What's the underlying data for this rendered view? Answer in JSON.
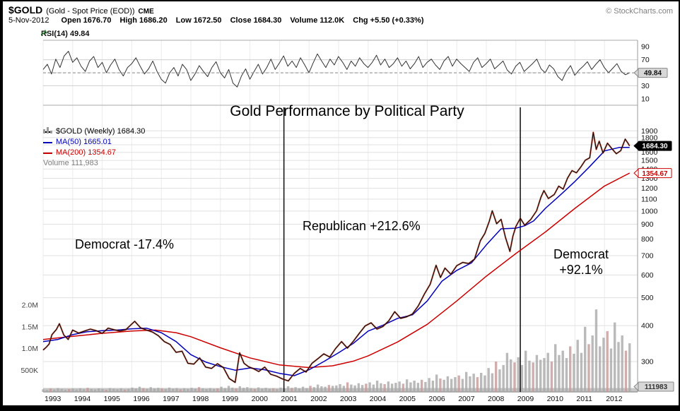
{
  "header": {
    "symbol": "$GOLD",
    "name": "(Gold - Spot Price (EOD))",
    "exchange": "CME",
    "copyright": "© StockCharts.com",
    "date": "5-Nov-2012",
    "quote": [
      {
        "label": "Open",
        "value": "1676.70"
      },
      {
        "label": "High",
        "value": "1686.20"
      },
      {
        "label": "Low",
        "value": "1672.50"
      },
      {
        "label": "Close",
        "value": "1684.30"
      },
      {
        "label": "Volume",
        "value": "112.0K"
      },
      {
        "label": "Chg",
        "value": "+5.50 (+0.33%)"
      }
    ]
  },
  "rsi_panel": {
    "label": "RSI(14) 49.84",
    "value_box": "49.84"
  },
  "legend": {
    "gold": "$GOLD (Weekly) 1684.30",
    "ma50": "MA(50) 1665.01",
    "ma200": "MA(200) 1354.67",
    "volume": "Volume 111,983"
  },
  "axis_tags": {
    "close": "1684.30",
    "ma200": "1354.67",
    "volume": "111983"
  },
  "colors": {
    "gold_line": "#000000",
    "gold_shadow": "#cc2200",
    "ma50": "#0000bb",
    "ma200": "#cc0000",
    "volume_bar": "#a9a9a9",
    "rsi_line": "#333333",
    "event_line": "#1a1a1a"
  },
  "chart_data": {
    "type": "line",
    "title": "Gold Performance by Political Party",
    "price_scale": "log",
    "ylim": [
      255,
      1950
    ],
    "annotations": {
      "left": "Democrat -17.4%",
      "middle": "Republican +212.6%",
      "right_line1": "Democrat",
      "right_line2": "+92.1%"
    },
    "x_ticks": [
      1993,
      1994,
      1995,
      1996,
      1997,
      1998,
      1999,
      2000,
      2001,
      2002,
      2003,
      2004,
      2005,
      2006,
      2007,
      2008,
      2009,
      2010,
      2011,
      2012
    ],
    "price_axis_ticks": [
      1900,
      1800,
      1700,
      1600,
      1500,
      1400,
      1300,
      1200,
      1100,
      1000,
      900,
      800,
      700,
      600,
      500,
      400,
      300
    ],
    "rsi_ticks": [
      90,
      70,
      30,
      10
    ],
    "volume_axis_ticks": [
      {
        "label": "2.0M",
        "value_k": 2000
      },
      {
        "label": "1.5M",
        "value_k": 1500
      },
      {
        "label": "1.0M",
        "value_k": 1000
      },
      {
        "label": "500K",
        "value_k": 500
      }
    ],
    "event_lines": [
      2001.15,
      2009.15
    ],
    "series": [
      {
        "name": "$GOLD (Weekly)",
        "color": "#000000",
        "last": 1684.3,
        "points": [
          [
            1993.0,
            329
          ],
          [
            1993.1,
            336
          ],
          [
            1993.2,
            345
          ],
          [
            1993.3,
            372
          ],
          [
            1993.45,
            388
          ],
          [
            1993.55,
            406
          ],
          [
            1993.7,
            371
          ],
          [
            1993.85,
            358
          ],
          [
            1994.0,
            386
          ],
          [
            1994.2,
            377
          ],
          [
            1994.4,
            383
          ],
          [
            1994.6,
            389
          ],
          [
            1994.8,
            384
          ],
          [
            1995.0,
            376
          ],
          [
            1995.2,
            392
          ],
          [
            1995.4,
            387
          ],
          [
            1995.6,
            383
          ],
          [
            1995.8,
            387
          ],
          [
            1996.0,
            405
          ],
          [
            1996.1,
            414
          ],
          [
            1996.3,
            393
          ],
          [
            1996.5,
            386
          ],
          [
            1996.7,
            380
          ],
          [
            1996.9,
            369
          ],
          [
            1997.1,
            352
          ],
          [
            1997.3,
            344
          ],
          [
            1997.5,
            323
          ],
          [
            1997.7,
            326
          ],
          [
            1997.9,
            296
          ],
          [
            1998.1,
            294
          ],
          [
            1998.3,
            309
          ],
          [
            1998.5,
            287
          ],
          [
            1998.7,
            284
          ],
          [
            1998.9,
            295
          ],
          [
            1999.1,
            286
          ],
          [
            1999.3,
            262
          ],
          [
            1999.5,
            254
          ],
          [
            1999.65,
            322
          ],
          [
            1999.8,
            296
          ],
          [
            1999.95,
            288
          ],
          [
            2000.1,
            284
          ],
          [
            2000.3,
            277
          ],
          [
            2000.5,
            287
          ],
          [
            2000.7,
            271
          ],
          [
            2000.9,
            267
          ],
          [
            2001.1,
            261
          ],
          [
            2001.3,
            257
          ],
          [
            2001.5,
            273
          ],
          [
            2001.7,
            284
          ],
          [
            2001.9,
            276
          ],
          [
            2002.1,
            296
          ],
          [
            2002.3,
            307
          ],
          [
            2002.5,
            319
          ],
          [
            2002.7,
            311
          ],
          [
            2002.9,
            333
          ],
          [
            2003.1,
            352
          ],
          [
            2003.3,
            334
          ],
          [
            2003.5,
            353
          ],
          [
            2003.7,
            376
          ],
          [
            2003.9,
            399
          ],
          [
            2004.1,
            409
          ],
          [
            2004.3,
            389
          ],
          [
            2004.5,
            397
          ],
          [
            2004.7,
            416
          ],
          [
            2004.9,
            447
          ],
          [
            2005.1,
            424
          ],
          [
            2005.3,
            429
          ],
          [
            2005.5,
            439
          ],
          [
            2005.7,
            469
          ],
          [
            2005.9,
            514
          ],
          [
            2006.1,
            557
          ],
          [
            2006.3,
            648
          ],
          [
            2006.45,
            588
          ],
          [
            2006.6,
            634
          ],
          [
            2006.8,
            603
          ],
          [
            2007.0,
            646
          ],
          [
            2007.2,
            663
          ],
          [
            2007.4,
            657
          ],
          [
            2007.6,
            681
          ],
          [
            2007.8,
            789
          ],
          [
            2007.95,
            836
          ],
          [
            2008.1,
            922
          ],
          [
            2008.2,
            1002
          ],
          [
            2008.35,
            904
          ],
          [
            2008.5,
            936
          ],
          [
            2008.65,
            808
          ],
          [
            2008.8,
            724
          ],
          [
            2008.9,
            818
          ],
          [
            2009.0,
            884
          ],
          [
            2009.15,
            944
          ],
          [
            2009.3,
            893
          ],
          [
            2009.5,
            934
          ],
          [
            2009.7,
            1002
          ],
          [
            2009.85,
            1118
          ],
          [
            2009.95,
            1178
          ],
          [
            2010.1,
            1106
          ],
          [
            2010.3,
            1142
          ],
          [
            2010.45,
            1221
          ],
          [
            2010.6,
            1192
          ],
          [
            2010.75,
            1302
          ],
          [
            2010.9,
            1382
          ],
          [
            2011.05,
            1358
          ],
          [
            2011.2,
            1424
          ],
          [
            2011.35,
            1502
          ],
          [
            2011.5,
            1532
          ],
          [
            2011.62,
            1878
          ],
          [
            2011.72,
            1638
          ],
          [
            2011.82,
            1748
          ],
          [
            2011.95,
            1592
          ],
          [
            2012.1,
            1722
          ],
          [
            2012.25,
            1648
          ],
          [
            2012.4,
            1582
          ],
          [
            2012.55,
            1622
          ],
          [
            2012.7,
            1778
          ],
          [
            2012.8,
            1718
          ],
          [
            2012.85,
            1684.3
          ]
        ]
      },
      {
        "name": "MA(50)",
        "color": "#0000bb",
        "last": 1665.01,
        "points": [
          [
            1993.0,
            352
          ],
          [
            1993.5,
            358
          ],
          [
            1994.0,
            372
          ],
          [
            1994.5,
            381
          ],
          [
            1995.0,
            384
          ],
          [
            1995.5,
            386
          ],
          [
            1996.0,
            390
          ],
          [
            1996.5,
            392
          ],
          [
            1997.0,
            378
          ],
          [
            1997.5,
            352
          ],
          [
            1998.0,
            317
          ],
          [
            1998.5,
            299
          ],
          [
            1999.0,
            288
          ],
          [
            1999.5,
            280
          ],
          [
            2000.0,
            285
          ],
          [
            2000.5,
            281
          ],
          [
            2001.0,
            273
          ],
          [
            2001.5,
            268
          ],
          [
            2002.0,
            281
          ],
          [
            2002.5,
            300
          ],
          [
            2003.0,
            322
          ],
          [
            2003.5,
            347
          ],
          [
            2004.0,
            383
          ],
          [
            2004.5,
            401
          ],
          [
            2005.0,
            424
          ],
          [
            2005.5,
            436
          ],
          [
            2006.0,
            487
          ],
          [
            2006.5,
            571
          ],
          [
            2007.0,
            622
          ],
          [
            2007.5,
            661
          ],
          [
            2008.0,
            763
          ],
          [
            2008.5,
            868
          ],
          [
            2009.0,
            872
          ],
          [
            2009.3,
            889
          ],
          [
            2009.6,
            924
          ],
          [
            2010.0,
            1022
          ],
          [
            2010.5,
            1136
          ],
          [
            2011.0,
            1268
          ],
          [
            2011.5,
            1428
          ],
          [
            2012.0,
            1618
          ],
          [
            2012.5,
            1664
          ],
          [
            2012.85,
            1665
          ]
        ]
      },
      {
        "name": "MA(200)",
        "color": "#cc0000",
        "last": 1354.67,
        "points": [
          [
            1993.0,
            358
          ],
          [
            1994.0,
            367
          ],
          [
            1995.0,
            376
          ],
          [
            1996.0,
            383
          ],
          [
            1996.8,
            386
          ],
          [
            1997.5,
            378
          ],
          [
            1998.0,
            366
          ],
          [
            1999.0,
            335
          ],
          [
            2000.0,
            309
          ],
          [
            2001.0,
            292
          ],
          [
            2002.0,
            286
          ],
          [
            2002.8,
            290
          ],
          [
            2003.5,
            301
          ],
          [
            2004.0,
            314
          ],
          [
            2005.0,
            351
          ],
          [
            2006.0,
            404
          ],
          [
            2007.0,
            487
          ],
          [
            2008.0,
            594
          ],
          [
            2009.0,
            712
          ],
          [
            2010.0,
            846
          ],
          [
            2011.0,
            1022
          ],
          [
            2012.0,
            1222
          ],
          [
            2012.85,
            1355
          ]
        ]
      }
    ],
    "volume": {
      "x_start": 1993,
      "x_end": 2012.85,
      "last": 111983,
      "values_k": [
        60,
        45,
        80,
        55,
        90,
        70,
        50,
        65,
        75,
        55,
        85,
        60,
        95,
        70,
        55,
        80,
        65,
        50,
        90,
        75,
        60,
        85,
        55,
        70,
        100,
        80,
        120,
        90,
        70,
        110,
        85,
        95,
        80,
        65,
        100,
        75,
        90,
        60,
        85,
        70,
        95,
        75,
        110,
        85,
        65,
        90,
        70,
        80,
        120,
        90,
        140,
        100,
        85,
        130,
        95,
        110,
        90,
        70,
        105,
        80,
        95,
        75,
        85,
        65,
        100,
        80,
        130,
        95,
        110,
        85,
        120,
        90,
        140,
        110,
        170,
        130,
        120,
        160,
        140,
        150,
        180,
        140,
        220,
        170,
        150,
        200,
        160,
        190,
        220,
        170,
        260,
        200,
        180,
        240,
        190,
        210,
        240,
        190,
        290,
        220,
        260,
        210,
        280,
        230,
        320,
        260,
        400,
        310,
        280,
        360,
        300,
        340,
        380,
        300,
        460,
        360,
        420,
        340,
        440,
        380,
        550,
        430,
        700,
        520,
        620,
        900,
        750,
        680,
        800,
        620,
        950,
        720,
        680,
        850,
        740,
        780,
        900,
        700,
        1100,
        850,
        950,
        780,
        1050,
        880,
        1200,
        900,
        1500,
        1100,
        1300,
        1900,
        1050,
        1250,
        1400,
        1000,
        1600,
        1150,
        1300,
        950,
        1120
      ]
    },
    "rsi": {
      "x_start": 1993,
      "x_end": 2012.85,
      "current": 49.84,
      "values": [
        55,
        63,
        48,
        71,
        58,
        76,
        83,
        66,
        73,
        60,
        52,
        68,
        75,
        58,
        66,
        50,
        62,
        71,
        55,
        45,
        58,
        64,
        73,
        60,
        48,
        56,
        68,
        52,
        40,
        34,
        50,
        58,
        45,
        63,
        55,
        38,
        48,
        61,
        52,
        44,
        58,
        67,
        50,
        42,
        55,
        34,
        28,
        45,
        56,
        40,
        52,
        63,
        48,
        58,
        71,
        55,
        65,
        76,
        60,
        68,
        58,
        73,
        62,
        50,
        65,
        79,
        68,
        58,
        71,
        62,
        75,
        66,
        55,
        68,
        60,
        73,
        64,
        58,
        66,
        77,
        62,
        71,
        58,
        64,
        73,
        60,
        68,
        56,
        64,
        75,
        58,
        66,
        71,
        62,
        55,
        68,
        75,
        60,
        71,
        64,
        58,
        52,
        66,
        73,
        58,
        64,
        71,
        56,
        62,
        68,
        54,
        48,
        60,
        66,
        52,
        58,
        64,
        71,
        56,
        50,
        62,
        56,
        44,
        38,
        52,
        61,
        46,
        54,
        60,
        67,
        55,
        63,
        70,
        58,
        50,
        57,
        64,
        52,
        47,
        49.84
      ]
    }
  }
}
